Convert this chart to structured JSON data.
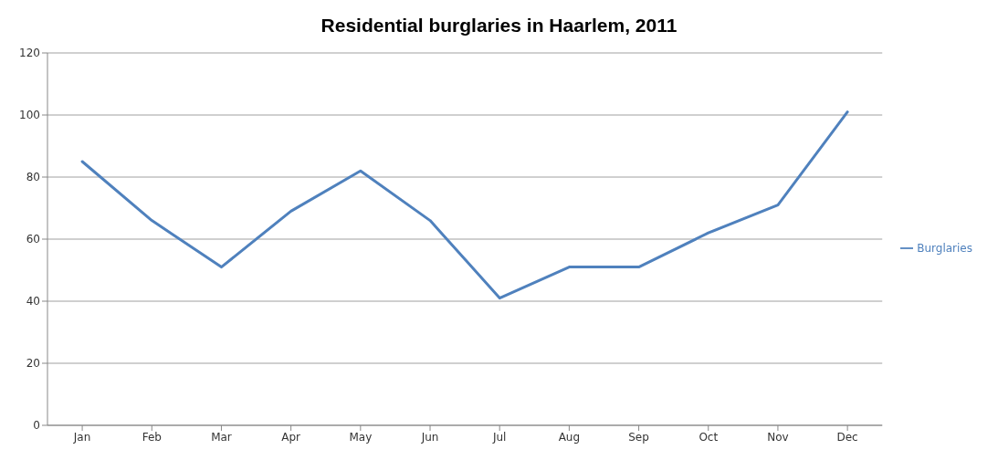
{
  "chart_data": {
    "type": "line",
    "title": "Residential burglaries in Haarlem, 2011",
    "categories": [
      "Jan",
      "Feb",
      "Mar",
      "Apr",
      "May",
      "Jun",
      "Jul",
      "Aug",
      "Sep",
      "Oct",
      "Nov",
      "Dec"
    ],
    "series": [
      {
        "name": "Burglaries",
        "color": "#4f81bd",
        "values": [
          85,
          66,
          51,
          69,
          82,
          66,
          41,
          51,
          51,
          62,
          71,
          101
        ]
      }
    ],
    "ylim": [
      0,
      120
    ],
    "yticks": [
      0,
      20,
      40,
      60,
      80,
      100,
      120
    ],
    "grid": "y",
    "legend": "right",
    "marker": "none",
    "line_style": "solid"
  }
}
